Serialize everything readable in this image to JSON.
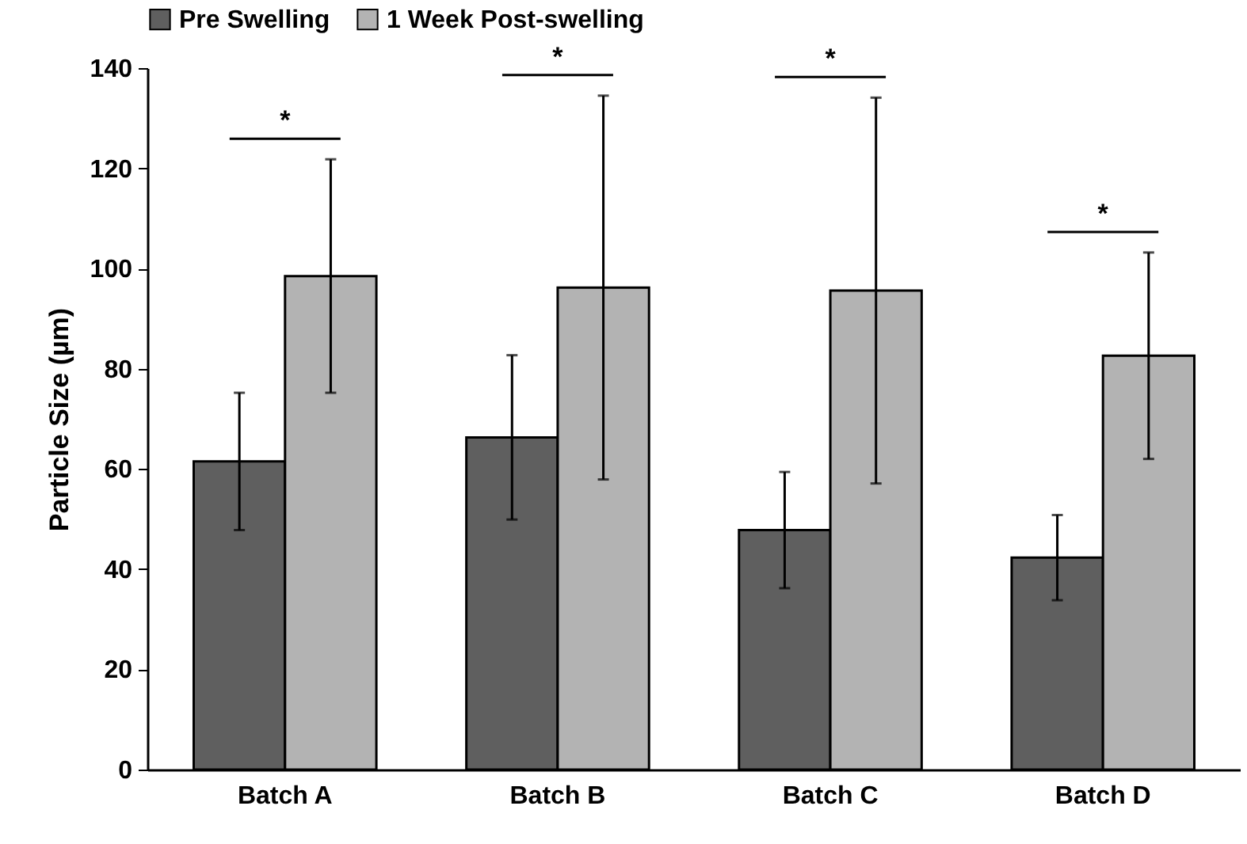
{
  "chart_data": {
    "type": "bar",
    "ylabel": "Particle Size (µm)",
    "categories": [
      "Batch A",
      "Batch B",
      "Batch C",
      "Batch D"
    ],
    "series": [
      {
        "name": "Pre Swelling",
        "color": "#5f5f5f",
        "values": [
          61.5,
          66.3,
          47.8,
          42.3
        ],
        "errors": [
          13.7,
          16.4,
          11.6,
          8.5
        ]
      },
      {
        "name": "1 Week Post-swelling",
        "color": "#b3b3b3",
        "values": [
          98.5,
          96.2,
          95.6,
          82.6
        ],
        "errors": [
          23.3,
          38.3,
          38.5,
          20.6
        ]
      }
    ],
    "ylim": [
      0,
      140
    ],
    "yticks": [
      0,
      20,
      40,
      60,
      80,
      100,
      120,
      140
    ],
    "grid": false,
    "legend": "top",
    "annotations": [
      "*",
      "*",
      "*",
      "*"
    ]
  }
}
